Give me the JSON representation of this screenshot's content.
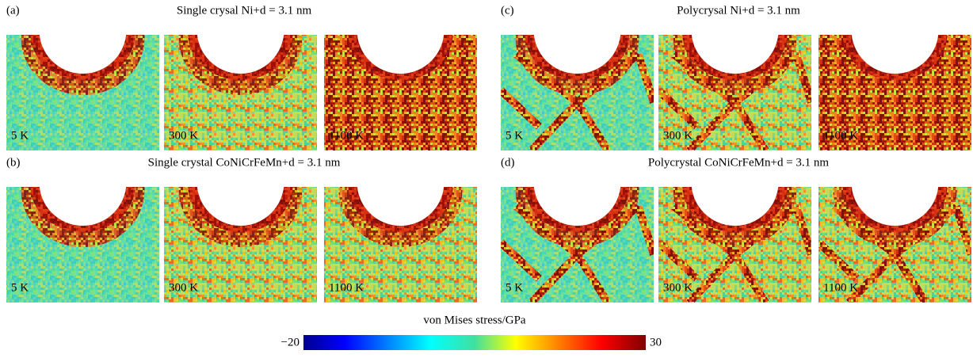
{
  "panels": [
    {
      "label": "(a)",
      "title": "Single crysal Ni+d = 3.1 nm",
      "images": [
        {
          "temperature": "5 K"
        },
        {
          "temperature": "300 K"
        },
        {
          "temperature": "1100 K"
        }
      ]
    },
    {
      "label": "(b)",
      "title": "Single crystal CoNiCrFeMn+d = 3.1 nm",
      "images": [
        {
          "temperature": "5 K"
        },
        {
          "temperature": "300 K"
        },
        {
          "temperature": "1100 K"
        }
      ]
    },
    {
      "label": "(c)",
      "title": "Polycrysal Ni+d = 3.1 nm",
      "images": [
        {
          "temperature": "5 K"
        },
        {
          "temperature": "300 K"
        },
        {
          "temperature": "1100 K"
        }
      ]
    },
    {
      "label": "(d)",
      "title": "Polycrystal CoNiCrFeMn+d = 3.1 nm",
      "images": [
        {
          "temperature": "5 K"
        },
        {
          "temperature": "300 K"
        },
        {
          "temperature": "1100 K"
        }
      ]
    }
  ],
  "colorbar": {
    "label": "von Mises stress/GPa",
    "range": [
      -20,
      30
    ],
    "ticks": [
      {
        "value": -20,
        "label": "−20"
      },
      30
    ]
  }
}
